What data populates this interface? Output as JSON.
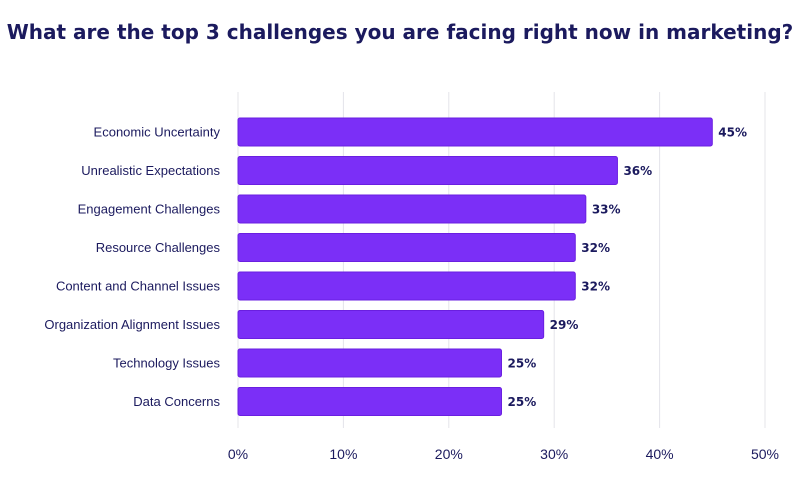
{
  "title": "What are the top 3 challenges you are facing right now in marketing?",
  "colors": {
    "bar": "#7b2ff7",
    "bar_stroke": "#6a1fe0",
    "text": "#1b1a5e",
    "grid": "#e4e4ea"
  },
  "chart_data": {
    "type": "bar",
    "orientation": "horizontal",
    "title": "What are the top 3 challenges you are facing right now in marketing?",
    "xlabel": "",
    "ylabel": "",
    "categories": [
      "Economic Uncertainty",
      "Unrealistic Expectations",
      "Engagement Challenges",
      "Resource Challenges",
      "Content and Channel Issues",
      "Organization Alignment Issues",
      "Technology Issues",
      "Data Concerns"
    ],
    "values": [
      45,
      36,
      33,
      32,
      32,
      29,
      25,
      25
    ],
    "value_labels": [
      "45%",
      "36%",
      "33%",
      "32%",
      "32%",
      "29%",
      "25%",
      "25%"
    ],
    "xlim": [
      0,
      50
    ],
    "x_ticks": [
      0,
      10,
      20,
      30,
      40,
      50
    ],
    "x_tick_labels": [
      "0%",
      "10%",
      "20%",
      "30%",
      "40%",
      "50%"
    ],
    "grid": true,
    "legend": "none"
  }
}
